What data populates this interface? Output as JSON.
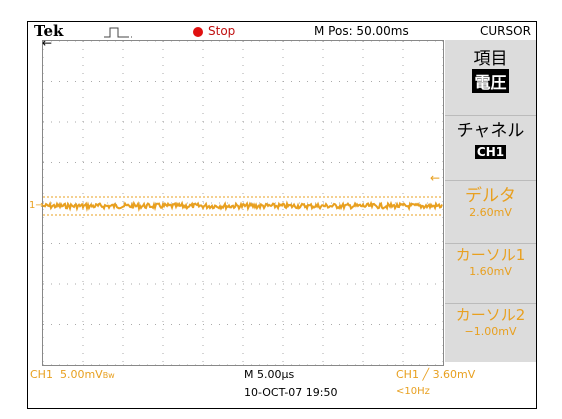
{
  "header": {
    "brand": "Tek",
    "run_state": "Stop",
    "position": "M Pos: 50.00ms",
    "menu_title": "CURSOR"
  },
  "menu": [
    {
      "label": "項目",
      "value": "電圧"
    },
    {
      "label": "チャネル",
      "value": "CH1"
    },
    {
      "label": "デルタ",
      "value": "2.60mV"
    },
    {
      "label": "カーソル1",
      "value": "1.60mV"
    },
    {
      "label": "カーソル2",
      "value": "−1.00mV"
    }
  ],
  "status": {
    "channel": "CH1",
    "scale": "5.00mV",
    "bandwidth": "Bw",
    "timebase": "M 5.00µs",
    "datetime": "10-OCT-07 19:50",
    "trigger": "CH1 ╱ 3.60mV",
    "frequency": "<10Hz"
  },
  "markers": {
    "channel_marker": "1"
  }
}
